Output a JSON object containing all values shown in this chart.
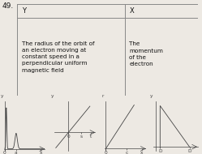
{
  "title_number": "49.",
  "table": {
    "col_y": "Y",
    "col_x": "X",
    "row1_y": "The radius of the orbit of\nan electron moving at\nconstant speed in a\nperpendicular uniform\nmagnetic field",
    "row1_x": "The\nmomentum\nof the\nelectron"
  },
  "background_color": "#ede9e3",
  "table_bg": "#f5f2ee",
  "line_color": "#444444",
  "text_color": "#111111",
  "border_color": "#888888",
  "font_size_title": 6.5,
  "font_size_table_header": 6.0,
  "font_size_table_body": 5.2,
  "font_size_axis": 4.2,
  "col_split": 0.595,
  "header_split": 0.845
}
